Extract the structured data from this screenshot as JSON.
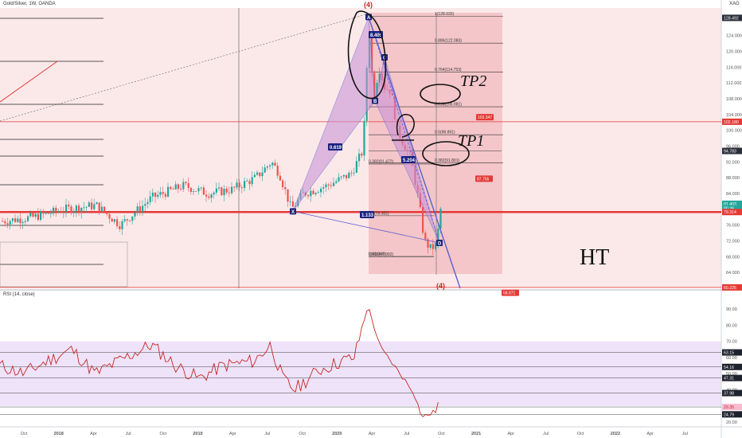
{
  "header": {
    "symbol": "Gold/Silver, 1W, OANDA",
    "currency": "XAG"
  },
  "colors": {
    "up": "#26a69a",
    "down": "#ef5350",
    "zone": "#f7d7d9",
    "zone_dark": "#f1b9bd",
    "pattern": "#c88fd6",
    "pattern_line": "#5b5fd0",
    "level_red": "#e53935",
    "rsi_line": "#c62828",
    "rsi_band": "#eadcf7"
  },
  "chart_data": {
    "type": "candlestick",
    "x_ticks": [
      "Oct",
      "2018",
      "Apr",
      "Jul",
      "Oct",
      "2019",
      "Apr",
      "Jul",
      "Oct",
      "2020",
      "Apr",
      "Jul",
      "Oct",
      "2021",
      "Apr",
      "Jul",
      "Oct",
      "2022",
      "Apr",
      "Jul"
    ],
    "y_ticks": [
      "124.000",
      "120.000",
      "116.000",
      "112.000",
      "108.000",
      "104.000",
      "100.000",
      "96.000",
      "92.000",
      "88.000",
      "84.000",
      "80.000",
      "76.000",
      "72.000",
      "68.000",
      "64.000"
    ],
    "price_ylim": [
      60,
      131
    ],
    "price_labels": [
      {
        "text": "128.492",
        "value": 128.492,
        "color": "#2a2e39"
      },
      {
        "text": "102.180",
        "value": 102.18,
        "color": "#e53935"
      },
      {
        "text": "94.783",
        "value": 94.783,
        "color": "#2a2e39"
      },
      {
        "text": "81.403",
        "value": 81.403,
        "color": "#26a69a"
      },
      {
        "text": "80.26",
        "value": 80.26,
        "color": "#26a69a"
      },
      {
        "text": "79.314",
        "value": 79.314,
        "color": "#e53935"
      },
      {
        "text": "60.225",
        "value": 60.225,
        "color": "#e53935"
      }
    ],
    "fib_levels": [
      {
        "label": "1(128.932)",
        "value": 128.932
      },
      {
        "label": "0.886(122.083)",
        "value": 122.083
      },
      {
        "label": "0.764(114.753)",
        "value": 114.753
      },
      {
        "label": "0.618(105.981)",
        "value": 105.981
      },
      {
        "label": "0.5(98.891)",
        "value": 98.891
      },
      {
        "label": "0.382(91.801)",
        "value": 91.801
      },
      {
        "label": "0.382(91.472)",
        "value": 91.472
      },
      {
        "label": "0.5(78.382)",
        "value": 78.382
      },
      {
        "label": "0.618(67.992)",
        "value": 67.992
      },
      {
        "label": "0(68.048)",
        "value": 68.048
      }
    ],
    "targets": [
      {
        "text": "103.347",
        "value": 103.347
      },
      {
        "text": "87.756",
        "value": 87.756
      },
      {
        "text": "58.871",
        "value": 58.871
      }
    ],
    "pattern_points": [
      {
        "label": "X",
        "value": 79.5
      },
      {
        "label": "A",
        "value": 128.7
      },
      {
        "label": "B",
        "value": 107.5
      },
      {
        "label": "C",
        "value": 118.5
      },
      {
        "label": "D",
        "value": 71.5
      }
    ],
    "ratio_labels": [
      "0.619",
      "8.405",
      "5.204",
      "1.133"
    ],
    "wave_labels": [
      "(4)",
      "(4)"
    ],
    "annotations": [
      "TP2",
      "TP1",
      "HT"
    ],
    "rsi": {
      "title": "RSI (14, close)",
      "ylim": [
        20,
        95
      ],
      "y_ticks": [
        "90.00",
        "80.00",
        "70.00",
        "60.00",
        "50.00",
        "40.00",
        "30.00",
        "20.00"
      ],
      "band": [
        30,
        70
      ],
      "level_labels": [
        {
          "text": "63.15",
          "value": 63.15
        },
        {
          "text": "54.16",
          "value": 54.16
        },
        {
          "text": "47.31",
          "value": 47.31
        },
        {
          "text": "37.98",
          "value": 37.98
        },
        {
          "text": "29.35",
          "value": 29.35
        },
        {
          "text": "24.79",
          "value": 24.79
        }
      ]
    }
  }
}
